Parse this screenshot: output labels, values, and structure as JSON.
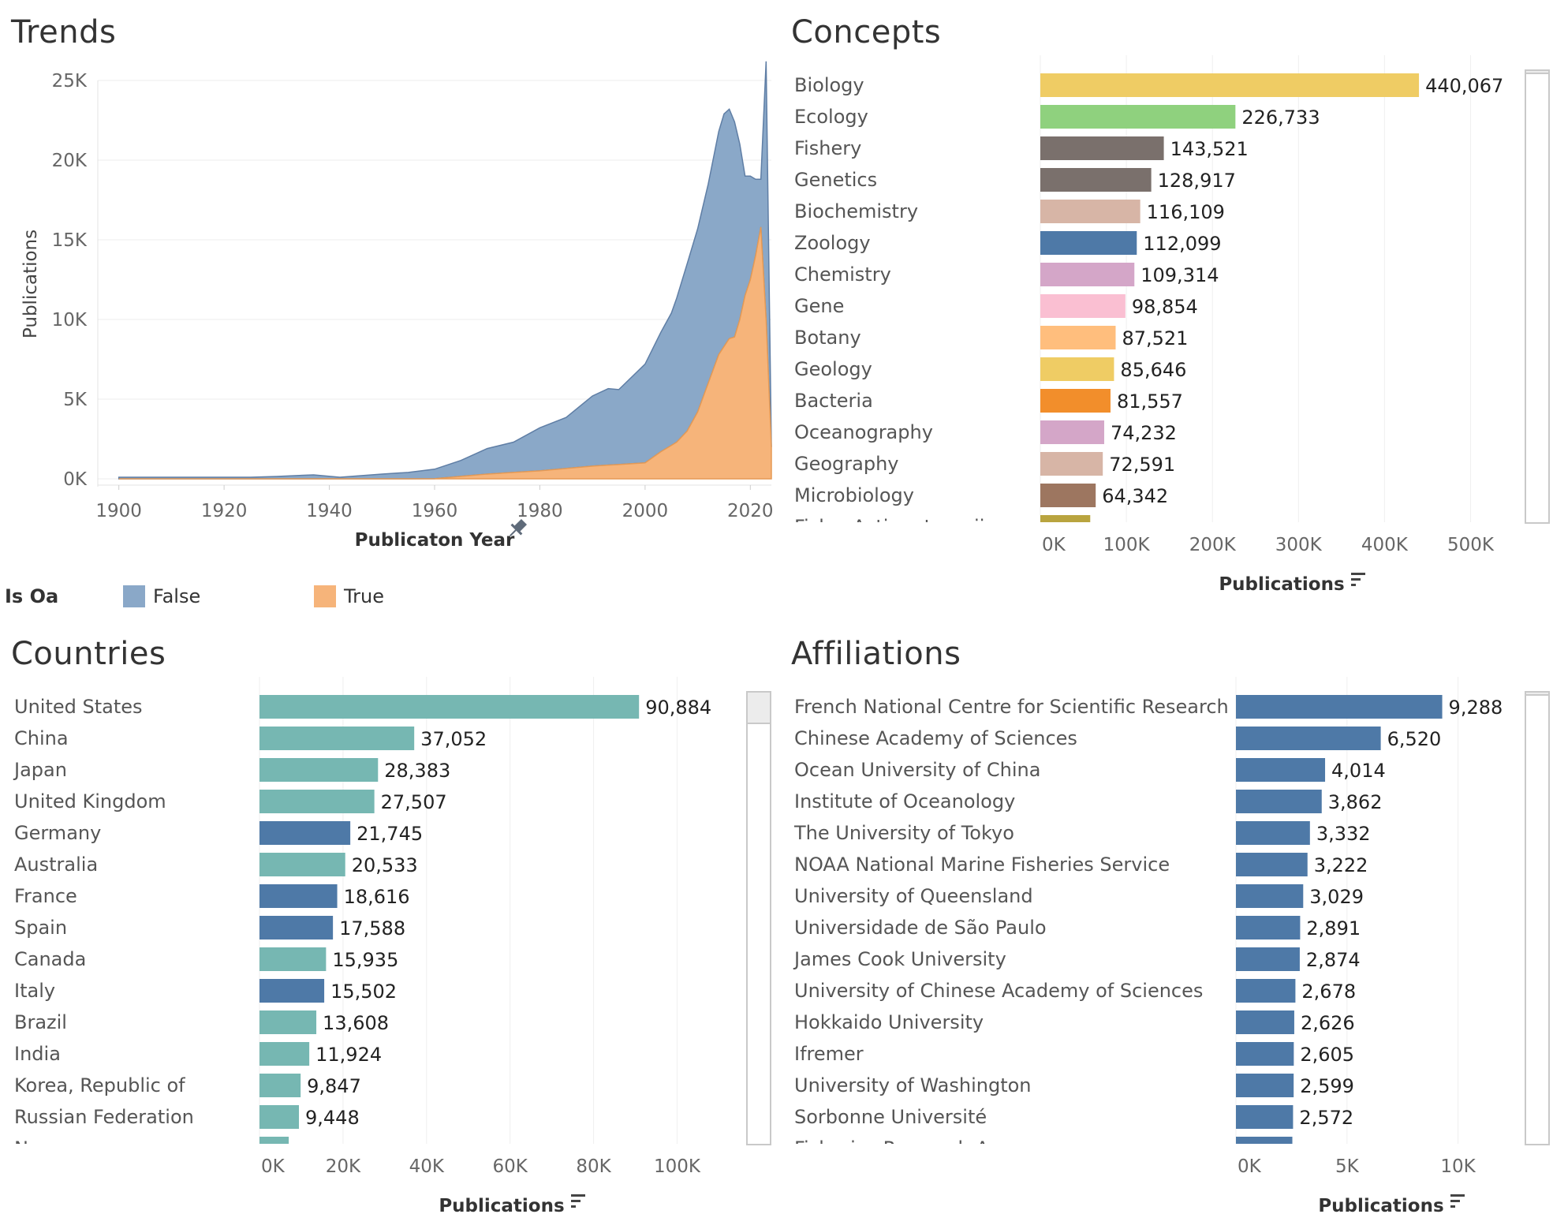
{
  "panels": {
    "trends_title": "Trends",
    "concepts_title": "Concepts",
    "countries_title": "Countries",
    "affiliations_title": "Affiliations"
  },
  "legend": {
    "title": "Is Oa",
    "items": [
      {
        "label": "False",
        "color": "#8aa8c8"
      },
      {
        "label": "True",
        "color": "#f6b47a"
      }
    ]
  },
  "chart_data": [
    {
      "id": "trends",
      "type": "area",
      "title": "Trends",
      "xlabel": "Publicaton Year",
      "ylabel": "Publications",
      "xlim": [
        1896,
        2024
      ],
      "ylim": [
        0,
        25000
      ],
      "x_ticks": [
        1900,
        1920,
        1940,
        1960,
        1980,
        2000,
        2020
      ],
      "y_ticks": [
        0,
        5000,
        10000,
        15000,
        20000,
        25000
      ],
      "y_tick_labels": [
        "0K",
        "5K",
        "10K",
        "15K",
        "20K",
        "25K"
      ],
      "stacked": true,
      "series": [
        {
          "name": "True",
          "color": "#f6b47a",
          "line": "#e59a55",
          "points": [
            [
              1900,
              0
            ],
            [
              1930,
              0
            ],
            [
              1950,
              0
            ],
            [
              1960,
              5
            ],
            [
              1970,
              300
            ],
            [
              1980,
              500
            ],
            [
              1990,
              800
            ],
            [
              1995,
              900
            ],
            [
              2000,
              1000
            ],
            [
              2003,
              1700
            ],
            [
              2006,
              2300
            ],
            [
              2008,
              3000
            ],
            [
              2010,
              4200
            ],
            [
              2012,
              6000
            ],
            [
              2014,
              7800
            ],
            [
              2016,
              8800
            ],
            [
              2017,
              8900
            ],
            [
              2018,
              10000
            ],
            [
              2019,
              11500
            ],
            [
              2020,
              12500
            ],
            [
              2021,
              14000
            ],
            [
              2022,
              15800
            ],
            [
              2023,
              10000
            ],
            [
              2024,
              2000
            ]
          ]
        },
        {
          "name": "False",
          "color": "#8aa8c8",
          "line": "#5f7ea5",
          "points": [
            [
              1900,
              100
            ],
            [
              1925,
              100
            ],
            [
              1930,
              150
            ],
            [
              1937,
              250
            ],
            [
              1942,
              100
            ],
            [
              1950,
              300
            ],
            [
              1955,
              400
            ],
            [
              1960,
              600
            ],
            [
              1965,
              1000
            ],
            [
              1970,
              1600
            ],
            [
              1975,
              1900
            ],
            [
              1980,
              2700
            ],
            [
              1985,
              3200
            ],
            [
              1990,
              4400
            ],
            [
              1993,
              4800
            ],
            [
              1995,
              4700
            ],
            [
              2000,
              6200
            ],
            [
              2003,
              7500
            ],
            [
              2005,
              8300
            ],
            [
              2008,
              10500
            ],
            [
              2010,
              11500
            ],
            [
              2012,
              12500
            ],
            [
              2014,
              14000
            ],
            [
              2015,
              14600
            ],
            [
              2016,
              14400
            ],
            [
              2017,
              13500
            ],
            [
              2018,
              11000
            ],
            [
              2019,
              7500
            ],
            [
              2020,
              6500
            ],
            [
              2021,
              4800
            ],
            [
              2022,
              3000
            ],
            [
              2023,
              16200
            ],
            [
              2024,
              0
            ]
          ]
        }
      ]
    },
    {
      "id": "concepts",
      "type": "bar",
      "title": "Concepts",
      "xlabel": "Publications",
      "xlim": [
        0,
        550000
      ],
      "x_ticks": [
        0,
        100000,
        200000,
        300000,
        400000,
        500000
      ],
      "x_tick_labels": [
        "0K",
        "100K",
        "200K",
        "300K",
        "400K",
        "500K"
      ],
      "categories": [
        "Biology",
        "Ecology",
        "Fishery",
        "Genetics",
        "Biochemistry",
        "Zoology",
        "Chemistry",
        "Gene",
        "Botany",
        "Geology",
        "Bacteria",
        "Oceanography",
        "Geography",
        "Microbiology",
        "Fish <Actinopterygii>"
      ],
      "values": [
        440067,
        226733,
        143521,
        128917,
        116109,
        112099,
        109314,
        98854,
        87521,
        85646,
        81557,
        74232,
        72591,
        64342,
        58000
      ],
      "value_labels": [
        "440,067",
        "226,733",
        "143,521",
        "128,917",
        "116,109",
        "112,099",
        "109,314",
        "98,854",
        "87,521",
        "85,646",
        "81,557",
        "74,232",
        "72,591",
        "64,342",
        ""
      ],
      "colors": [
        "#efcc64",
        "#8fd17e",
        "#7a706c",
        "#7a706c",
        "#d7b5a6",
        "#4e79a7",
        "#d4a6c8",
        "#fabfd2",
        "#ffbe7d",
        "#efcc64",
        "#f28e2b",
        "#d4a6c8",
        "#d7b5a6",
        "#9d7660",
        "#b9a43f"
      ],
      "visible_rows": 14
    },
    {
      "id": "countries",
      "type": "bar",
      "title": "Countries",
      "xlabel": "Publications",
      "xlim": [
        0,
        112000
      ],
      "x_ticks": [
        0,
        20000,
        40000,
        60000,
        80000,
        100000
      ],
      "x_tick_labels": [
        "0K",
        "20K",
        "40K",
        "60K",
        "80K",
        "100K"
      ],
      "categories": [
        "United States",
        "China",
        "Japan",
        "United Kingdom",
        "Germany",
        "Australia",
        "France",
        "Spain",
        "Canada",
        "Italy",
        "Brazil",
        "India",
        "Korea, Republic of",
        "Russian Federation",
        "Norway"
      ],
      "values": [
        90884,
        37052,
        28383,
        27507,
        21745,
        20533,
        18616,
        17588,
        15935,
        15502,
        13608,
        11924,
        9847,
        9448,
        7000
      ],
      "value_labels": [
        "90,884",
        "37,052",
        "28,383",
        "27,507",
        "21,745",
        "20,533",
        "18,616",
        "17,588",
        "15,935",
        "15,502",
        "13,608",
        "11,924",
        "9,847",
        "9,448",
        ""
      ],
      "colors": [
        "#76b7b2",
        "#76b7b2",
        "#76b7b2",
        "#76b7b2",
        "#4e79a7",
        "#76b7b2",
        "#4e79a7",
        "#4e79a7",
        "#76b7b2",
        "#4e79a7",
        "#76b7b2",
        "#76b7b2",
        "#76b7b2",
        "#76b7b2",
        "#76b7b2"
      ],
      "visible_rows": 14
    },
    {
      "id": "affiliations",
      "type": "bar",
      "title": "Affiliations",
      "xlabel": "Publications",
      "xlim": [
        0,
        12500
      ],
      "x_ticks": [
        0,
        5000,
        10000
      ],
      "x_tick_labels": [
        "0K",
        "5K",
        "10K"
      ],
      "categories": [
        "French National Centre for Scientific Research",
        "Chinese Academy of Sciences",
        "Ocean University of China",
        "Institute of Oceanology",
        "The University of Tokyo",
        "NOAA National Marine Fisheries Service",
        "University of Queensland",
        "Universidade de São Paulo",
        "James Cook University",
        "University of Chinese Academy of Sciences",
        "Hokkaido University",
        "Ifremer",
        "University of Washington",
        "Sorbonne Université",
        "Fisheries Research Agency"
      ],
      "values": [
        9288,
        6520,
        4014,
        3862,
        3332,
        3222,
        3029,
        2891,
        2874,
        2678,
        2626,
        2605,
        2599,
        2572,
        2540
      ],
      "value_labels": [
        "9,288",
        "6,520",
        "4,014",
        "3,862",
        "3,332",
        "3,222",
        "3,029",
        "2,891",
        "2,874",
        "2,678",
        "2,626",
        "2,605",
        "2,599",
        "2,572",
        ""
      ],
      "colors": [
        "#4e79a7",
        "#4e79a7",
        "#4e79a7",
        "#4e79a7",
        "#4e79a7",
        "#4e79a7",
        "#4e79a7",
        "#4e79a7",
        "#4e79a7",
        "#4e79a7",
        "#4e79a7",
        "#4e79a7",
        "#4e79a7",
        "#4e79a7",
        "#4e79a7"
      ],
      "visible_rows": 14
    }
  ]
}
